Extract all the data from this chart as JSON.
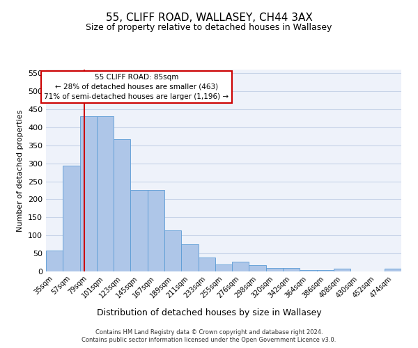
{
  "title": "55, CLIFF ROAD, WALLASEY, CH44 3AX",
  "subtitle": "Size of property relative to detached houses in Wallasey",
  "xlabel": "Distribution of detached houses by size in Wallasey",
  "ylabel": "Number of detached properties",
  "bar_labels": [
    "35sqm",
    "57sqm",
    "79sqm",
    "101sqm",
    "123sqm",
    "145sqm",
    "167sqm",
    "189sqm",
    "211sqm",
    "233sqm",
    "255sqm",
    "276sqm",
    "298sqm",
    "320sqm",
    "342sqm",
    "364sqm",
    "386sqm",
    "408sqm",
    "430sqm",
    "452sqm",
    "474sqm"
  ],
  "bar_values": [
    57,
    293,
    430,
    430,
    367,
    226,
    226,
    113,
    75,
    38,
    20,
    28,
    17,
    9,
    9,
    4,
    4,
    7,
    0,
    0,
    7
  ],
  "bar_color": "#aec6e8",
  "bar_edge_color": "#5b9bd5",
  "grid_color": "#c8d4e8",
  "bg_color": "#eef2fa",
  "vline_color": "#cc0000",
  "annotation_text": "55 CLIFF ROAD: 85sqm\n← 28% of detached houses are smaller (463)\n71% of semi-detached houses are larger (1,196) →",
  "annotation_box_color": "#ffffff",
  "annotation_box_edge": "#cc0000",
  "ylim": [
    0,
    560
  ],
  "yticks": [
    0,
    50,
    100,
    150,
    200,
    250,
    300,
    350,
    400,
    450,
    500,
    550
  ],
  "footer_line1": "Contains HM Land Registry data © Crown copyright and database right 2024.",
  "footer_line2": "Contains public sector information licensed under the Open Government Licence v3.0."
}
